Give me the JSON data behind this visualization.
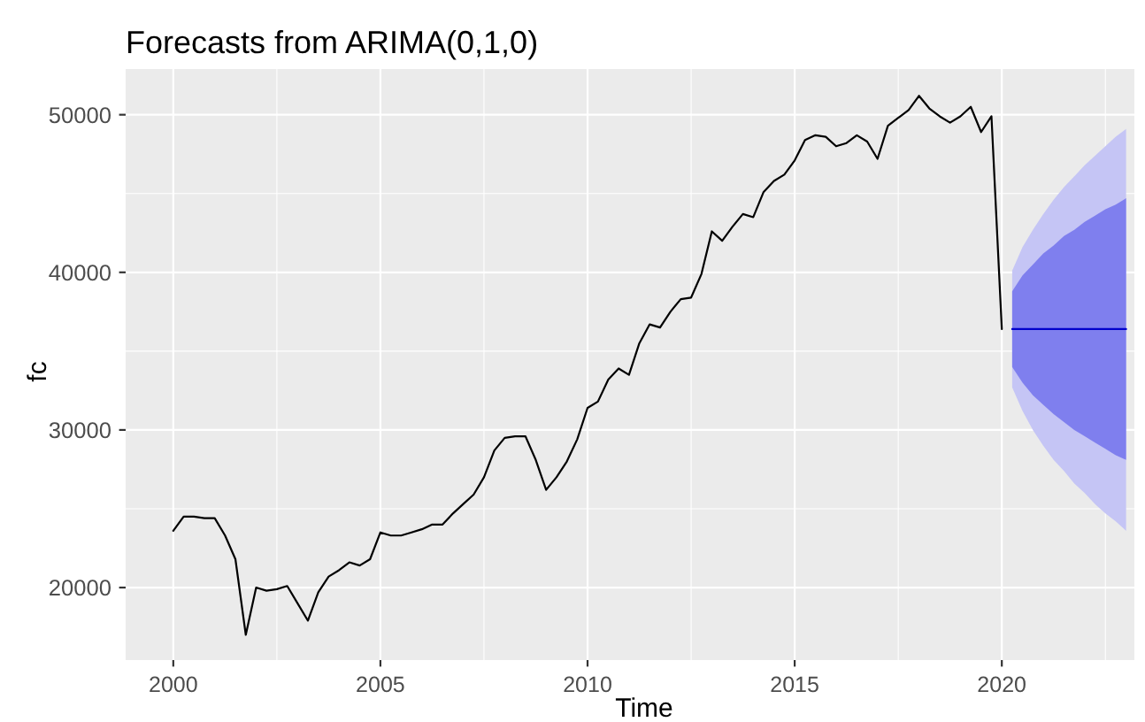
{
  "chart_data": {
    "type": "line",
    "title": "Forecasts from ARIMA(0,1,0)",
    "xlabel": "Time",
    "ylabel": "fc",
    "xlim": [
      1998.85,
      2023.2
    ],
    "ylim": [
      15400,
      52900
    ],
    "xticks": [
      2000,
      2005,
      2010,
      2015,
      2020
    ],
    "yticks": [
      20000,
      30000,
      40000,
      50000
    ],
    "grid": true,
    "series": [
      {
        "color": "#000000",
        "x": [
          2000,
          2000.25,
          2000.5,
          2000.75,
          2001,
          2001.25,
          2001.5,
          2001.75,
          2002,
          2002.25,
          2002.5,
          2002.75,
          2003,
          2003.25,
          2003.5,
          2003.75,
          2004,
          2004.25,
          2004.5,
          2004.75,
          2005,
          2005.25,
          2005.5,
          2005.75,
          2006,
          2006.25,
          2006.5,
          2006.75,
          2007,
          2007.25,
          2007.5,
          2007.75,
          2008,
          2008.25,
          2008.5,
          2008.75,
          2009,
          2009.25,
          2009.5,
          2009.75,
          2010,
          2010.25,
          2010.5,
          2010.75,
          2011,
          2011.25,
          2011.5,
          2011.75,
          2012,
          2012.25,
          2012.5,
          2012.75,
          2013,
          2013.25,
          2013.5,
          2013.75,
          2014,
          2014.25,
          2014.5,
          2014.75,
          2015,
          2015.25,
          2015.5,
          2015.75,
          2016,
          2016.25,
          2016.5,
          2016.75,
          2017,
          2017.25,
          2017.5,
          2017.75,
          2018,
          2018.25,
          2018.5,
          2018.75,
          2019,
          2019.25,
          2019.5,
          2019.75,
          2020
        ],
        "values": [
          23600,
          24500,
          24500,
          24400,
          24400,
          23300,
          21800,
          17000,
          20000,
          19800,
          19900,
          20100,
          19000,
          17900,
          19700,
          20700,
          21100,
          21600,
          21400,
          21800,
          23500,
          23300,
          23300,
          23500,
          23700,
          24000,
          24000,
          24700,
          25300,
          25900,
          27000,
          28700,
          29500,
          29600,
          29600,
          28100,
          26200,
          27000,
          28000,
          29400,
          31400,
          31800,
          33200,
          33900,
          33500,
          35500,
          36700,
          36500,
          37500,
          38300,
          38400,
          39900,
          42600,
          42000,
          42900,
          43700,
          43500,
          45100,
          45800,
          46200,
          47100,
          48400,
          48700,
          48600,
          48000,
          48200,
          48700,
          48300,
          47200,
          49300,
          49800,
          50300,
          51200,
          50400,
          49900,
          49500,
          49900,
          50500,
          48900,
          49900,
          36400
        ]
      },
      {
        "color": "#c5c5f5",
        "x": [
          2020.25,
          2020.5,
          2020.75,
          2021,
          2021.25,
          2021.5,
          2021.75,
          2022,
          2022.25,
          2022.5,
          2022.75,
          2023
        ],
        "values": [
          null,
          null,
          null,
          null,
          null,
          null,
          null,
          null,
          null,
          null,
          null,
          null
        ],
        "lower": [
          32700,
          31200,
          30000,
          29000,
          28100,
          27400,
          26600,
          26000,
          25300,
          24700,
          24200,
          23600
        ],
        "upper": [
          40100,
          41600,
          42700,
          43700,
          44600,
          45400,
          46100,
          46800,
          47400,
          48000,
          48600,
          49100
        ]
      },
      {
        "color": "#7f7fee",
        "x": [
          2020.25,
          2020.5,
          2020.75,
          2021,
          2021.25,
          2021.5,
          2021.75,
          2022,
          2022.25,
          2022.5,
          2022.75,
          2023
        ],
        "values": [
          null,
          null,
          null,
          null,
          null,
          null,
          null,
          null,
          null,
          null,
          null,
          null
        ],
        "lower": [
          34000,
          33000,
          32200,
          31600,
          31000,
          30500,
          30000,
          29600,
          29200,
          28800,
          28400,
          28100
        ],
        "upper": [
          38800,
          39800,
          40500,
          41200,
          41700,
          42300,
          42700,
          43200,
          43600,
          44000,
          44300,
          44700
        ]
      },
      {
        "color": "#0000cc",
        "x": [
          2020.25,
          2020.5,
          2020.75,
          2021,
          2021.25,
          2021.5,
          2021.75,
          2022,
          2022.25,
          2022.5,
          2022.75,
          2023
        ],
        "values": [
          36400,
          36400,
          36400,
          36400,
          36400,
          36400,
          36400,
          36400,
          36400,
          36400,
          36400,
          36400
        ]
      }
    ]
  }
}
